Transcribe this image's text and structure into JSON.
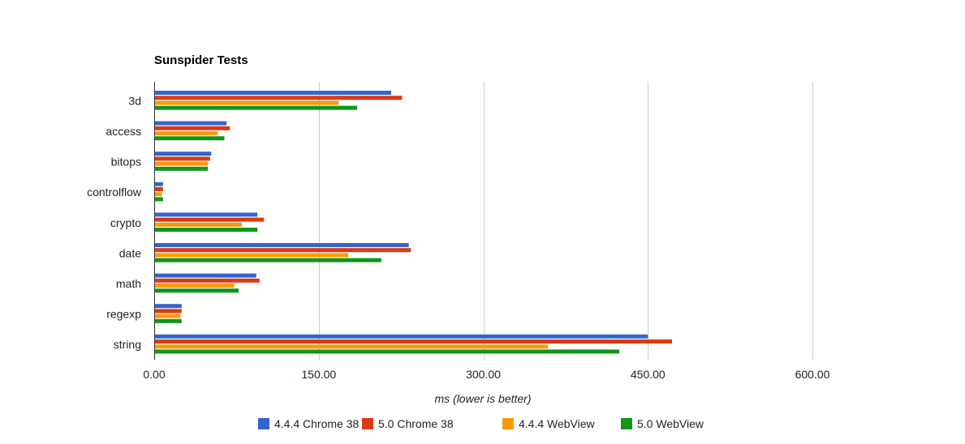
{
  "chart_data": {
    "type": "bar",
    "orientation": "horizontal",
    "title": "Sunspider Tests",
    "xlabel": "ms (lower is better)",
    "xlim": [
      0,
      600
    ],
    "xticks": [
      "0.00",
      "150.00",
      "300.00",
      "450.00",
      "600.00"
    ],
    "xtick_values": [
      0,
      150,
      300,
      450,
      600
    ],
    "grid": true,
    "legend_position": "bottom",
    "categories": [
      "3d",
      "access",
      "bitops",
      "controlflow",
      "crypto",
      "date",
      "math",
      "regexp",
      "string"
    ],
    "series": [
      {
        "name": "4.4.4 Chrome 38",
        "color": "#3366cc",
        "values": [
          216,
          66,
          52,
          8,
          94,
          232,
          93,
          25,
          450
        ]
      },
      {
        "name": "5.0 Chrome 38",
        "color": "#dc3912",
        "values": [
          226,
          69,
          51,
          8,
          100,
          234,
          96,
          25,
          472
        ]
      },
      {
        "name": "4.4.4 WebView",
        "color": "#ff9900",
        "values": [
          168,
          58,
          49,
          7,
          80,
          177,
          73,
          24,
          359
        ]
      },
      {
        "name": "5.0 WebView",
        "color": "#109618",
        "values": [
          185,
          64,
          49,
          8,
          94,
          207,
          77,
          25,
          424
        ]
      }
    ]
  }
}
